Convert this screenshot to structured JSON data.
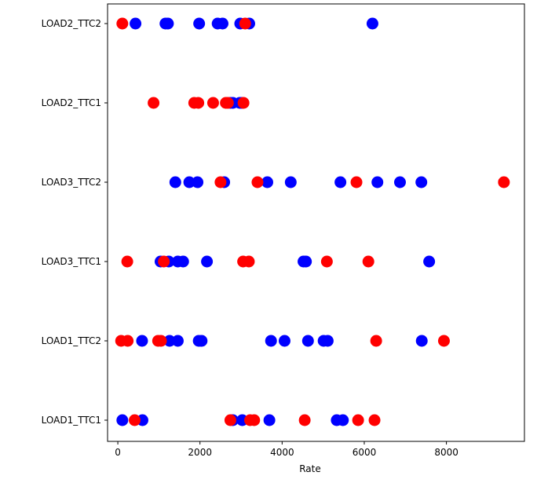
{
  "chart_data": {
    "type": "scatter",
    "title": "",
    "xlabel": "Rate",
    "ylabel": "",
    "xlim": [
      -250,
      9900
    ],
    "x_ticks": [
      0,
      2000,
      4000,
      6000,
      8000
    ],
    "x_tick_labels": [
      "0",
      "2000",
      "4000",
      "6000",
      "8000"
    ],
    "categories": [
      "LOAD1_TTC1",
      "LOAD1_TTC2",
      "LOAD3_TTC1",
      "LOAD3_TTC2",
      "LOAD2_TTC1",
      "LOAD2_TTC2"
    ],
    "grid": false,
    "legend": false,
    "series": [
      {
        "color": "#0000ff",
        "points": {
          "LOAD1_TTC1": [
            110,
            600,
            2800,
            3030,
            3690,
            5330,
            5480
          ],
          "LOAD1_TTC2": [
            590,
            1260,
            1460,
            1970,
            2040,
            3730,
            4060,
            4630,
            5010,
            5110,
            7400
          ],
          "LOAD3_TTC1": [
            1040,
            1240,
            1460,
            1590,
            2170,
            4520,
            4580,
            7580
          ],
          "LOAD3_TTC2": [
            1400,
            1740,
            1940,
            2590,
            3640,
            4210,
            5420,
            6320,
            6870,
            7390
          ],
          "LOAD2_TTC1": [
            2740,
            2800,
            2970,
            3020
          ],
          "LOAD2_TTC2": [
            430,
            1160,
            1220,
            1980,
            2430,
            2550,
            2980,
            3200,
            6200
          ]
        }
      },
      {
        "color": "#ff0000",
        "points": {
          "LOAD1_TTC1": [
            410,
            2740,
            3220,
            3320,
            4550,
            5850,
            6250
          ],
          "LOAD1_TTC2": [
            80,
            240,
            980,
            1050,
            6290,
            7940
          ],
          "LOAD3_TTC1": [
            230,
            1120,
            3050,
            3190,
            5090,
            6100
          ],
          "LOAD3_TTC2": [
            2500,
            3400,
            5810,
            9400
          ],
          "LOAD2_TTC1": [
            870,
            1860,
            1960,
            2320,
            2630,
            2680,
            3060
          ],
          "LOAD2_TTC2": [
            110,
            3100
          ]
        }
      }
    ]
  }
}
